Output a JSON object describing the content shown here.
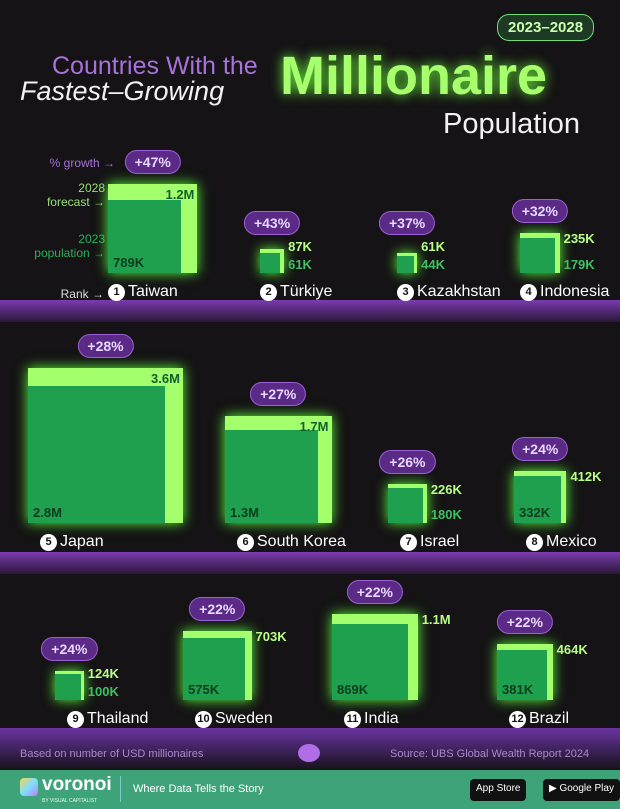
{
  "header": {
    "line1": "Countries With the",
    "line2": "Fastest–Growing",
    "line3": "Millionaire",
    "line4": "Population",
    "years": "2023–2028"
  },
  "legend": {
    "growth": "% growth →",
    "forecast": "2028\nforecast →",
    "population": "2023\npopulation →",
    "rank": "Rank →"
  },
  "colors": {
    "forecast_2028": "#a4ff6c",
    "population_2023": "#1ea04f",
    "growth_pill": "#5a2a86",
    "background": "#151315"
  },
  "chart_data": {
    "type": "nested-square",
    "title": "Countries With the Fastest–Growing Millionaire Population",
    "subtitle": "2023–2028",
    "rows": [
      {
        "rank": 1,
        "country": "Taiwan",
        "pop_2023": "789K",
        "forecast_2028": "1.2M",
        "growth": "+47%",
        "v2023": 789000,
        "v2028": 1200000
      },
      {
        "rank": 2,
        "country": "Türkiye",
        "pop_2023": "61K",
        "forecast_2028": "87K",
        "growth": "+43%",
        "v2023": 61000,
        "v2028": 87000
      },
      {
        "rank": 3,
        "country": "Kazakhstan",
        "pop_2023": "44K",
        "forecast_2028": "61K",
        "growth": "+37%",
        "v2023": 44000,
        "v2028": 61000
      },
      {
        "rank": 4,
        "country": "Indonesia",
        "pop_2023": "179K",
        "forecast_2028": "235K",
        "growth": "+32%",
        "v2023": 179000,
        "v2028": 235000
      },
      {
        "rank": 5,
        "country": "Japan",
        "pop_2023": "2.8M",
        "forecast_2028": "3.6M",
        "growth": "+28%",
        "v2023": 2800000,
        "v2028": 3600000
      },
      {
        "rank": 6,
        "country": "South Korea",
        "pop_2023": "1.3M",
        "forecast_2028": "1.7M",
        "growth": "+27%",
        "v2023": 1300000,
        "v2028": 1700000
      },
      {
        "rank": 7,
        "country": "Israel",
        "pop_2023": "180K",
        "forecast_2028": "226K",
        "growth": "+26%",
        "v2023": 180000,
        "v2028": 226000
      },
      {
        "rank": 8,
        "country": "Mexico",
        "pop_2023": "332K",
        "forecast_2028": "412K",
        "growth": "+24%",
        "v2023": 332000,
        "v2028": 412000
      },
      {
        "rank": 9,
        "country": "Thailand",
        "pop_2023": "100K",
        "forecast_2028": "124K",
        "growth": "+24%",
        "v2023": 100000,
        "v2028": 124000
      },
      {
        "rank": 10,
        "country": "Sweden",
        "pop_2023": "575K",
        "forecast_2028": "703K",
        "growth": "+22%",
        "v2023": 575000,
        "v2028": 703000
      },
      {
        "rank": 11,
        "country": "India",
        "pop_2023": "869K",
        "forecast_2028": "1.1M",
        "growth": "+22%",
        "v2023": 869000,
        "v2028": 1100000
      },
      {
        "rank": 12,
        "country": "Brazil",
        "pop_2023": "381K",
        "forecast_2028": "464K",
        "growth": "+22%",
        "v2023": 381000,
        "v2028": 464000
      }
    ]
  },
  "footer": {
    "note": "Based on number of USD millionaires",
    "source": "Source: UBS Global Wealth Report 2024",
    "brand": "voronoi",
    "brand_sub": "BY VISUAL CAPITALIST",
    "tagline": "Where Data Tells the Story",
    "app_store": "App Store",
    "google_play": "Google Play"
  }
}
